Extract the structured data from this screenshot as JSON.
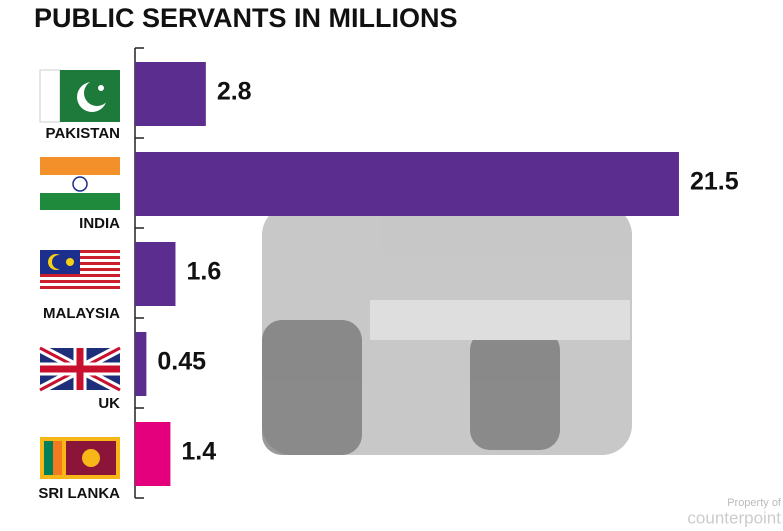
{
  "chart_data": {
    "type": "hbar",
    "title": "PUBLIC  SERVANTS IN MILLIONS",
    "categories": [
      "PAKISTAN",
      "INDIA",
      "MALAYSIA",
      "UK",
      "SRI LANKA"
    ],
    "values": [
      2.8,
      21.5,
      1.6,
      0.45,
      1.4
    ],
    "colors": [
      "#5b2d8e",
      "#5b2d8e",
      "#5b2d8e",
      "#5b2d8e",
      "#e4007c"
    ],
    "watermark": [
      "Property of",
      "counterpoint"
    ]
  }
}
